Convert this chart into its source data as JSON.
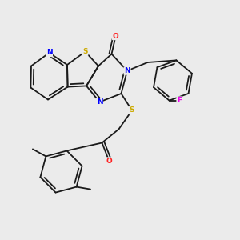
{
  "background_color": "#ebebeb",
  "bond_color": "#1a1a1a",
  "atom_colors": {
    "N": "#0000ff",
    "S": "#ccaa00",
    "O": "#ff2020",
    "F": "#ee00ee",
    "C": "#1a1a1a"
  },
  "lw": 1.3,
  "figsize": [
    3.0,
    3.0
  ],
  "dpi": 100
}
